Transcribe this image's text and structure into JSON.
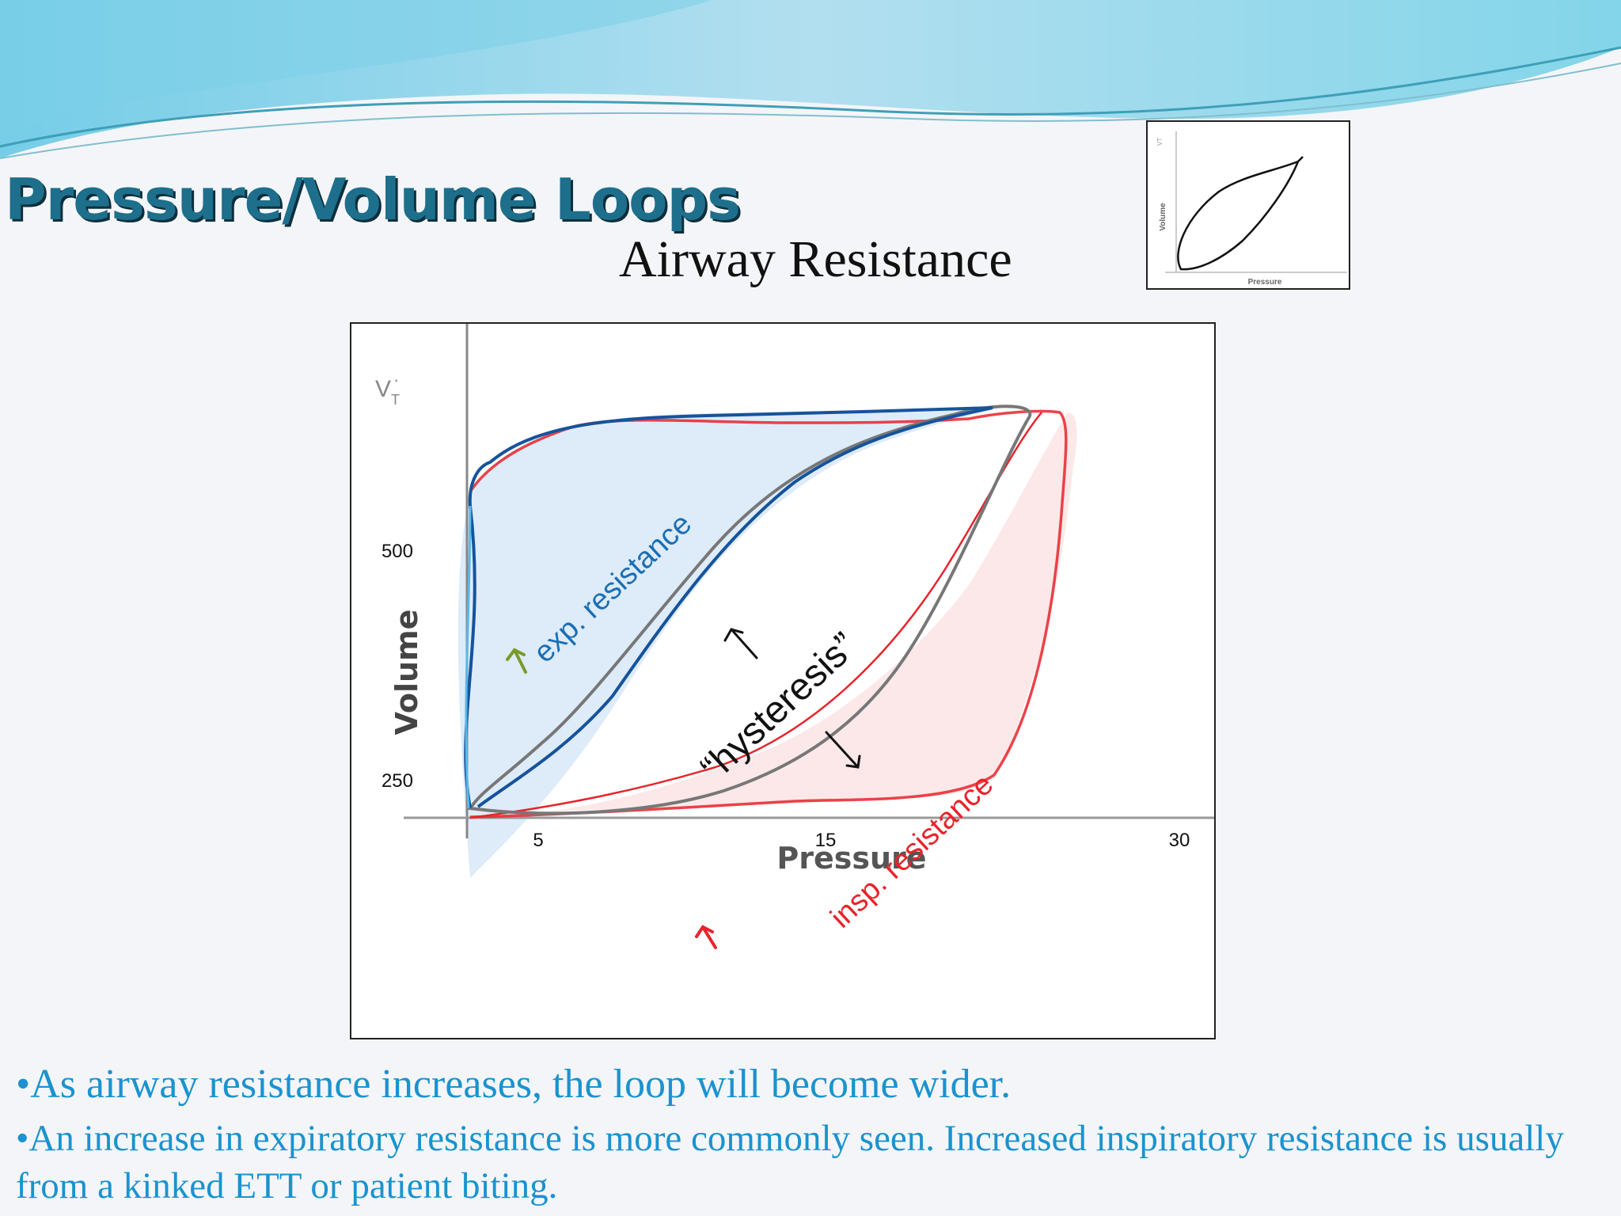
{
  "slide": {
    "title": "Pressure/Volume Loops",
    "subtitle": "Airway Resistance",
    "bullets": [
      "•As airway resistance increases, the loop will become wider.",
      "•An increase in expiratory resistance is more commonly seen.  Increased inspiratory resistance is usually from a kinked ETT or patient biting."
    ]
  },
  "thumbnail": {
    "xlabel": "Pressure",
    "ylabel": "Volume",
    "vt_label": "VT"
  },
  "diagram": {
    "vt_symbol": "V",
    "vt_subscript": "T",
    "xlabel": "Pressure",
    "ylabel": "Volume",
    "x_ticks": [
      "5",
      "15",
      "30"
    ],
    "y_ticks": [
      "500",
      "250"
    ],
    "annotations": {
      "expiratory": "exp. resistance",
      "inspiratory": "insp. resistance",
      "hysteresis": "“hysteresis”"
    }
  },
  "colors": {
    "title": "#1d6f8c",
    "bullets": "#1a93cf",
    "expiratory": "#1a5ea8",
    "inspiratory": "#e8232b",
    "normal_loop": "#777777",
    "arrow_exp": "#7a9a2a"
  }
}
